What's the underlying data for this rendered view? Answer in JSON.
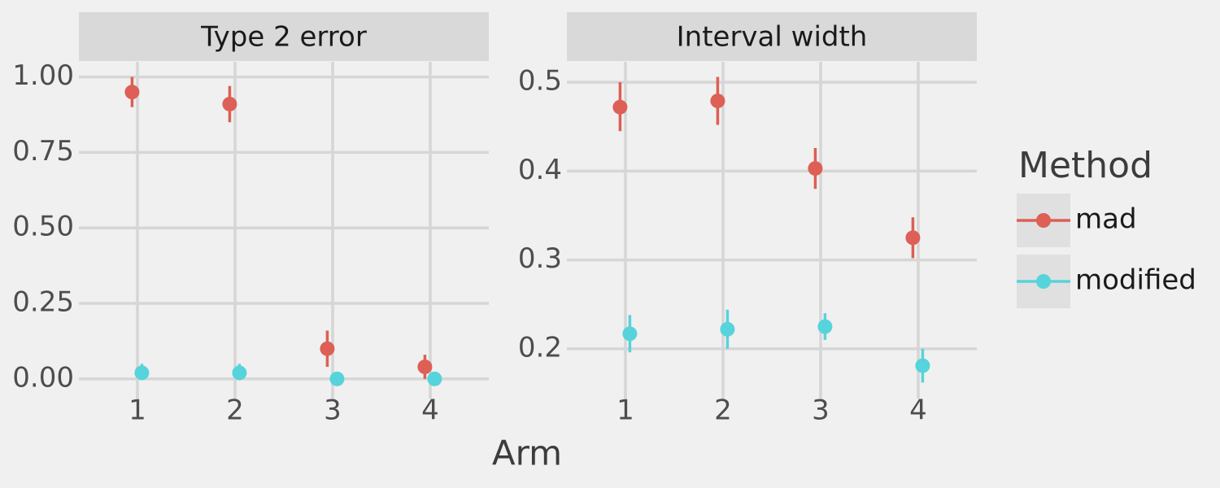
{
  "x_label": "Arm",
  "legend_title": "Method",
  "chart_data": [
    {
      "type": "pointrange",
      "title": "Type 2 error",
      "x": [
        1,
        2,
        3,
        4
      ],
      "xlim": [
        0.4,
        4.6
      ],
      "xticks": [
        1,
        2,
        3,
        4
      ],
      "ylim": [
        -0.065,
        1.05
      ],
      "yticks": [
        {
          "value": 0,
          "label": "0.00"
        },
        0.25,
        {
          "value": 0.5,
          "label": "0.50"
        },
        0.75,
        {
          "value": 1,
          "label": "1.00"
        }
      ],
      "grid": true,
      "series": [
        {
          "name": "mad",
          "color": "#dd5f55",
          "values": [
            0.95,
            0.91,
            0.1,
            0.04
          ],
          "lower": [
            0.9,
            0.85,
            0.04,
            0.0
          ],
          "upper": [
            1.0,
            0.97,
            0.16,
            0.08
          ]
        },
        {
          "name": "modified",
          "color": "#57d3db",
          "values": [
            0.02,
            0.02,
            0.0,
            0.0
          ],
          "lower": [
            0.0,
            0.0,
            0.0,
            0.0
          ],
          "upper": [
            0.05,
            0.05,
            0.0,
            0.0
          ]
        }
      ]
    },
    {
      "type": "pointrange",
      "title": "Interval width",
      "x": [
        1,
        2,
        3,
        4
      ],
      "xlim": [
        0.4,
        4.6
      ],
      "xticks": [
        1,
        2,
        3,
        4
      ],
      "ylim": [
        0.144,
        0.523
      ],
      "yticks": [
        0.2,
        0.3,
        0.4,
        0.5
      ],
      "grid": true,
      "series": [
        {
          "name": "mad",
          "color": "#dd5f55",
          "values": [
            0.472,
            0.479,
            0.403,
            0.325
          ],
          "lower": [
            0.445,
            0.452,
            0.38,
            0.302
          ],
          "upper": [
            0.5,
            0.506,
            0.426,
            0.348
          ]
        },
        {
          "name": "modified",
          "color": "#57d3db",
          "values": [
            0.217,
            0.222,
            0.225,
            0.181
          ],
          "lower": [
            0.196,
            0.2,
            0.21,
            0.162
          ],
          "upper": [
            0.238,
            0.244,
            0.24,
            0.2
          ]
        }
      ]
    }
  ]
}
